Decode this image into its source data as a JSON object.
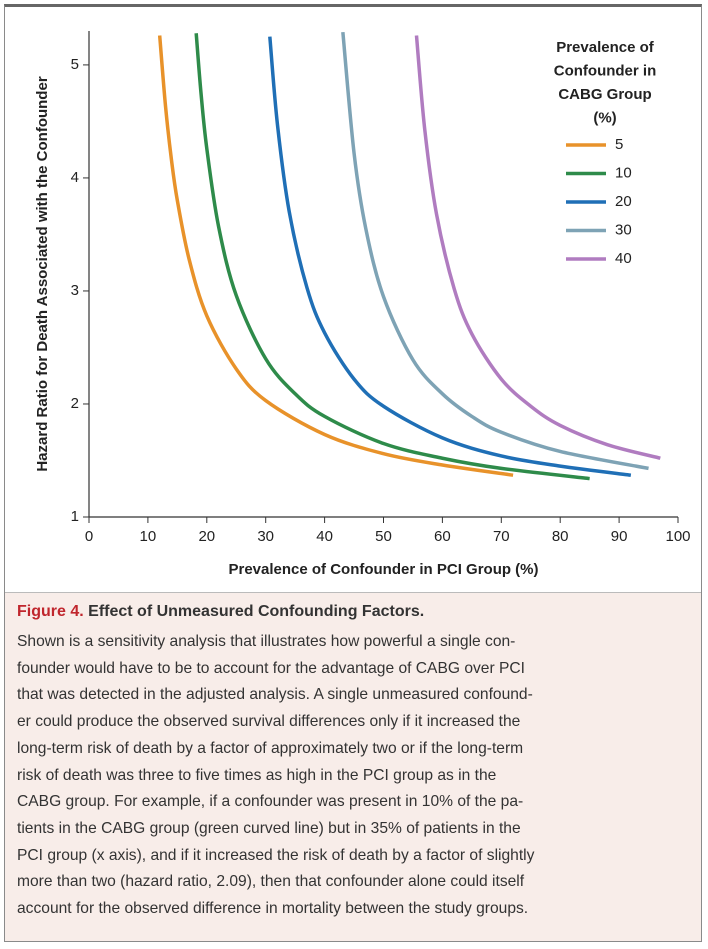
{
  "chart_data": {
    "type": "line",
    "xlabel": "Prevalence of Confounder in PCI Group (%)",
    "ylabel": "Hazard Ratio for Death Associated with the Confounder",
    "legend_title": [
      "Prevalence of",
      "Confounder in",
      "CABG Group",
      "(%)"
    ],
    "legend_position": "upper right",
    "grid": false,
    "xlim": [
      0,
      100
    ],
    "xticks": [
      0,
      10,
      20,
      30,
      40,
      50,
      60,
      70,
      80,
      90,
      100
    ],
    "ylim": [
      1,
      5.3
    ],
    "yticks": [
      1,
      2,
      3,
      4,
      5
    ],
    "series": [
      {
        "name": "5",
        "color": "#e8922a",
        "x": [
          12,
          13,
          14,
          15,
          17,
          20,
          25,
          30,
          40,
          50,
          60,
          72
        ],
        "values": [
          5.26,
          4.63,
          4.16,
          3.8,
          3.28,
          2.78,
          2.31,
          2.03,
          1.73,
          1.56,
          1.46,
          1.37
        ]
      },
      {
        "name": "10",
        "color": "#2e8b4a",
        "x": [
          18.2,
          19,
          20,
          22,
          25,
          30,
          35,
          40,
          50,
          60,
          70,
          85
        ],
        "values": [
          5.28,
          4.76,
          4.26,
          3.57,
          2.96,
          2.4,
          2.09,
          1.89,
          1.65,
          1.52,
          1.43,
          1.34
        ]
      },
      {
        "name": "20",
        "color": "#1f6fb6",
        "x": [
          30.7,
          32,
          34,
          37,
          40,
          45,
          50,
          60,
          70,
          80,
          92
        ],
        "values": [
          5.25,
          4.47,
          3.7,
          3.03,
          2.63,
          2.22,
          1.98,
          1.7,
          1.54,
          1.45,
          1.37
        ]
      },
      {
        "name": "30",
        "color": "#7ea3b5",
        "x": [
          43.1,
          45,
          47,
          50,
          55,
          60,
          65,
          70,
          80,
          95
        ],
        "values": [
          5.29,
          4.22,
          3.55,
          2.95,
          2.39,
          2.09,
          1.89,
          1.75,
          1.58,
          1.43
        ]
      },
      {
        "name": "40",
        "color": "#b07cc0",
        "x": [
          55.6,
          57,
          59,
          62,
          65,
          70,
          75,
          80,
          88,
          97
        ],
        "values": [
          5.26,
          4.43,
          3.68,
          3.02,
          2.62,
          2.22,
          1.98,
          1.81,
          1.64,
          1.52
        ]
      }
    ]
  },
  "caption": {
    "label": "Figure 4.",
    "title": "Effect of Unmeasured Confounding Factors.",
    "lines": [
      "Shown is a sensitivity analysis that illustrates how powerful a single con-",
      "founder would have to be to account for the advantage of CABG over PCI",
      "that was detected in the adjusted analysis. A single unmeasured confound-",
      "er could produce the observed survival differences only if it increased the",
      "long-term risk of death by a factor of approximately two or if the long-term",
      "risk of death was three to five times as high in the PCI group as in the",
      "CABG group. For example, if a confounder was present in 10% of the pa-",
      "tients in the CABG group (green curved line) but in 35% of patients in the",
      "PCI group (x axis), and if it increased the risk of death by a factor of slightly",
      "more than two (hazard ratio, 2.09), then that confounder alone could itself",
      "account for the observed difference in mortality between the study groups."
    ]
  }
}
